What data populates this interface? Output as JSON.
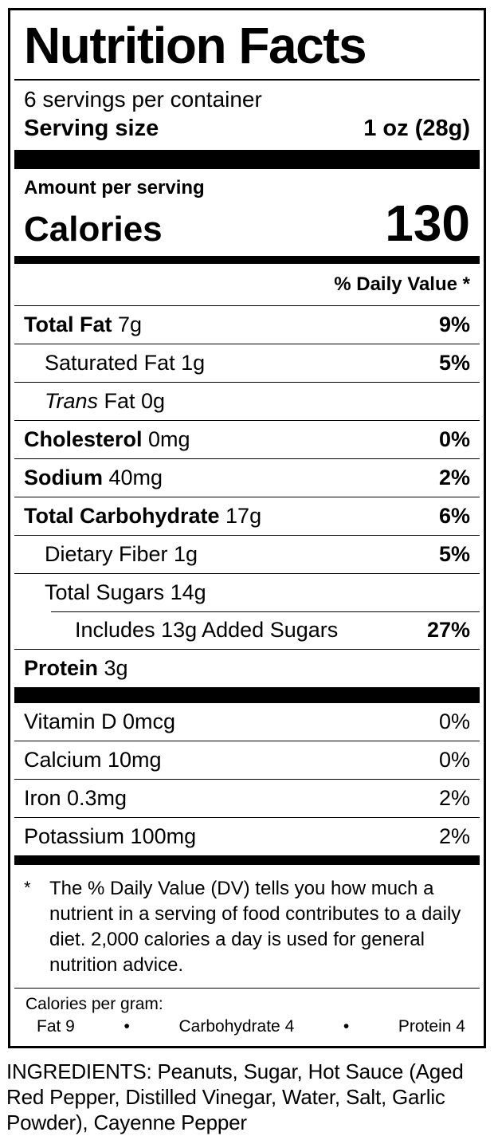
{
  "label": {
    "title": "Nutrition Facts",
    "servings_per_container": "6 servings per container",
    "serving_size_label": "Serving size",
    "serving_size_value": "1 oz (28g)",
    "amount_per_serving": "Amount per serving",
    "calories_label": "Calories",
    "calories_value": "130",
    "daily_value_header": "% Daily Value *",
    "nutrients": [
      {
        "name_bold": "Total Fat",
        "name_regular": " 7g",
        "dv": "9%",
        "dv_bold": true,
        "indent": 0
      },
      {
        "name_regular": "Saturated Fat 1g",
        "dv": "5%",
        "dv_bold": true,
        "indent": 1
      },
      {
        "name_italic": "Trans",
        "name_regular": " Fat 0g",
        "dv": "",
        "indent": 1
      },
      {
        "name_bold": "Cholesterol",
        "name_regular": " 0mg",
        "dv": "0%",
        "dv_bold": true,
        "indent": 0
      },
      {
        "name_bold": "Sodium",
        "name_regular": " 40mg",
        "dv": "2%",
        "dv_bold": true,
        "indent": 0
      },
      {
        "name_bold": "Total Carbohydrate",
        "name_regular": " 17g",
        "dv": "6%",
        "dv_bold": true,
        "indent": 0
      },
      {
        "name_regular": "Dietary Fiber 1g",
        "dv": "5%",
        "dv_bold": true,
        "indent": 1
      },
      {
        "name_regular": "Total Sugars 14g",
        "dv": "",
        "indent": 1
      },
      {
        "name_regular": "Includes 13g Added Sugars",
        "dv": "27%",
        "dv_bold": true,
        "indent": 2,
        "rule_indent": true
      },
      {
        "name_bold": "Protein",
        "name_regular": " 3g",
        "dv": "",
        "indent": 0
      }
    ],
    "vitamins": [
      {
        "name": "Vitamin D 0mcg",
        "dv": "0%"
      },
      {
        "name": "Calcium 10mg",
        "dv": "0%"
      },
      {
        "name": "Iron 0.3mg",
        "dv": "2%"
      },
      {
        "name": "Potassium 100mg",
        "dv": "2%"
      }
    ],
    "footnote": {
      "marker": "*",
      "text": "The % Daily Value (DV) tells you how much a nutrient in a serving of food contributes to a daily diet. 2,000 calories a day is used for general nutrition advice."
    },
    "calories_per_gram": {
      "heading": "Calories per gram:",
      "items": [
        "Fat 9",
        "Carbohydrate 4",
        "Protein 4"
      ],
      "separator": "•"
    }
  },
  "ingredients_statement": "INGREDIENTS: Peanuts, Sugar, Hot Sauce (Aged Red Pepper, Distilled Vinegar, Water, Salt, Garlic Powder), Cayenne Pepper",
  "colors": {
    "text": "#000000",
    "background": "#ffffff",
    "rule": "#000000"
  }
}
